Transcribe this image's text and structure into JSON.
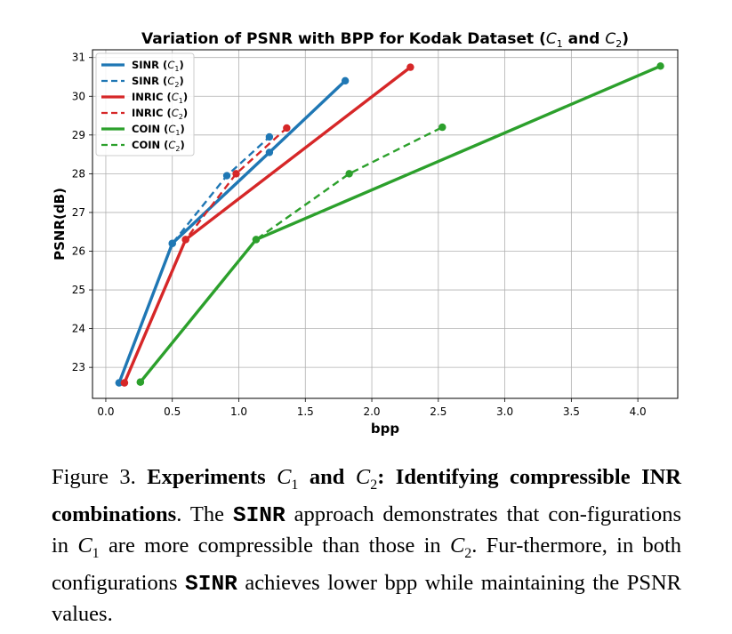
{
  "chart_data": {
    "type": "line",
    "title_prefix": "Variation of PSNR with BPP for Kodak Dataset (",
    "title_c1": "C",
    "title_and": " and ",
    "title_c2": "C",
    "title_suffix": ")",
    "xlabel": "bpp",
    "ylabel": "PSNR(dB)",
    "xlim": [
      -0.1,
      4.3
    ],
    "ylim": [
      22.2,
      31.2
    ],
    "xticks": [
      0.0,
      0.5,
      1.0,
      1.5,
      2.0,
      2.5,
      3.0,
      3.5,
      4.0
    ],
    "xtick_labels": [
      "0.0",
      "0.5",
      "1.0",
      "1.5",
      "2.0",
      "2.5",
      "3.0",
      "3.5",
      "4.0"
    ],
    "yticks": [
      23,
      24,
      25,
      26,
      27,
      28,
      29,
      30,
      31
    ],
    "ytick_labels": [
      "23",
      "24",
      "25",
      "26",
      "27",
      "28",
      "29",
      "30",
      "31"
    ],
    "grid": true,
    "legend_position": "top-left",
    "series": [
      {
        "name": "SINR",
        "config": "C1",
        "color": "#1f77b4",
        "style": "solid",
        "x": [
          0.1,
          0.5,
          1.23,
          1.8
        ],
        "y": [
          22.6,
          26.2,
          28.55,
          30.4
        ]
      },
      {
        "name": "SINR",
        "config": "C2",
        "color": "#1f77b4",
        "style": "dashed",
        "x": [
          0.1,
          0.5,
          0.91,
          1.23
        ],
        "y": [
          22.6,
          26.2,
          27.95,
          28.95
        ]
      },
      {
        "name": "INRIC",
        "config": "C1",
        "color": "#d62728",
        "style": "solid",
        "x": [
          0.14,
          0.6,
          2.29
        ],
        "y": [
          22.6,
          26.3,
          30.75
        ]
      },
      {
        "name": "INRIC",
        "config": "C2",
        "color": "#d62728",
        "style": "dashed",
        "x": [
          0.14,
          0.6,
          0.98,
          1.36
        ],
        "y": [
          22.6,
          26.3,
          28.0,
          29.18
        ]
      },
      {
        "name": "COIN",
        "config": "C1",
        "color": "#2ca02c",
        "style": "solid",
        "x": [
          0.26,
          1.13,
          4.17
        ],
        "y": [
          22.62,
          26.3,
          30.78
        ]
      },
      {
        "name": "COIN",
        "config": "C2",
        "color": "#2ca02c",
        "style": "dashed",
        "x": [
          0.26,
          1.13,
          1.83,
          2.53
        ],
        "y": [
          22.62,
          26.3,
          28.0,
          29.2
        ]
      }
    ]
  },
  "caption": {
    "figure_label": "Figure 3.",
    "bold_part_a": "Experiments",
    "c1_symbol": "C",
    "c1_sub": "1",
    "and_word": "and",
    "c2_symbol": "C",
    "c2_sub": "2",
    "bold_part_b": ": Identifying compressible INR combinations",
    "text_a": ". The",
    "sinr_1": "SINR",
    "text_b": "approach demonstrates that con-figurations in",
    "text_c": "are more compressible than those in",
    "text_d": ". Fur-thermore, in both configurations",
    "sinr_2": "SINR",
    "text_e": "achieves lower bpp while maintaining the PSNR values."
  }
}
